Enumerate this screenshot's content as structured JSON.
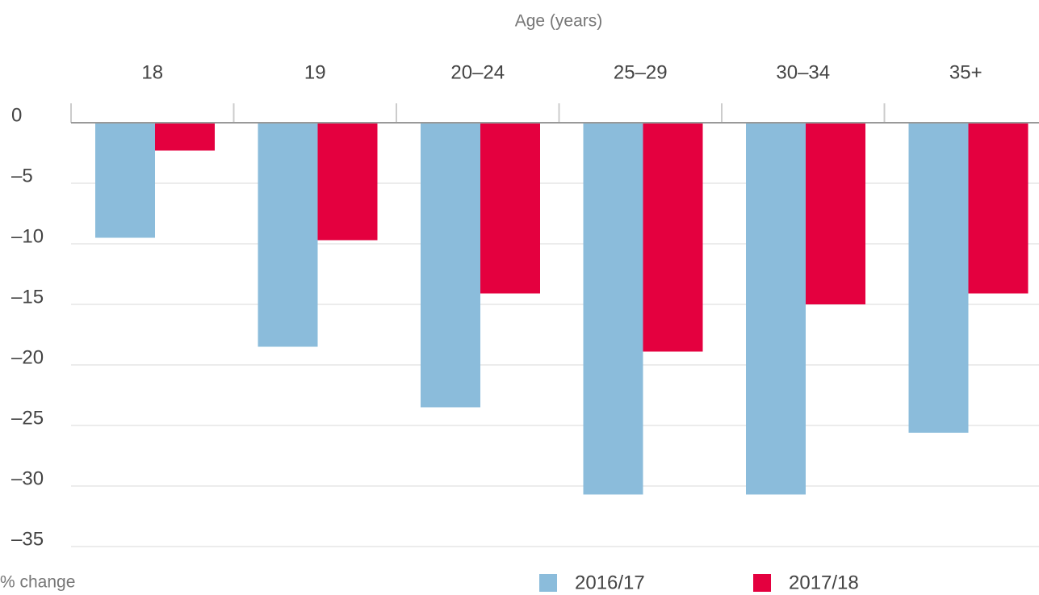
{
  "chart_data": {
    "type": "bar",
    "x_label": "Age (years)",
    "y_label": "% change",
    "categories": [
      "18",
      "19",
      "20–24",
      "25–29",
      "30–34",
      "35+"
    ],
    "series": [
      {
        "name": "2016/17",
        "color": "#8bbcdb",
        "values": [
          -9.5,
          -18.5,
          -23.5,
          -30.7,
          -30.7,
          -25.6
        ]
      },
      {
        "name": "2017/18",
        "color": "#e4003f",
        "values": [
          -2.3,
          -9.7,
          -14.1,
          -18.9,
          -15,
          -14.1
        ]
      }
    ],
    "ylim": [
      -35,
      0
    ],
    "yticks": [
      0,
      {
        "value": -5,
        "label": "–5"
      },
      {
        "value": -10,
        "label": "–10"
      },
      {
        "value": -15,
        "label": "–15"
      },
      {
        "value": -20,
        "label": "–20"
      },
      {
        "value": -25,
        "label": "–25"
      },
      {
        "value": -30,
        "label": "–30"
      },
      {
        "value": -35,
        "label": "–35"
      }
    ],
    "grid": true
  }
}
